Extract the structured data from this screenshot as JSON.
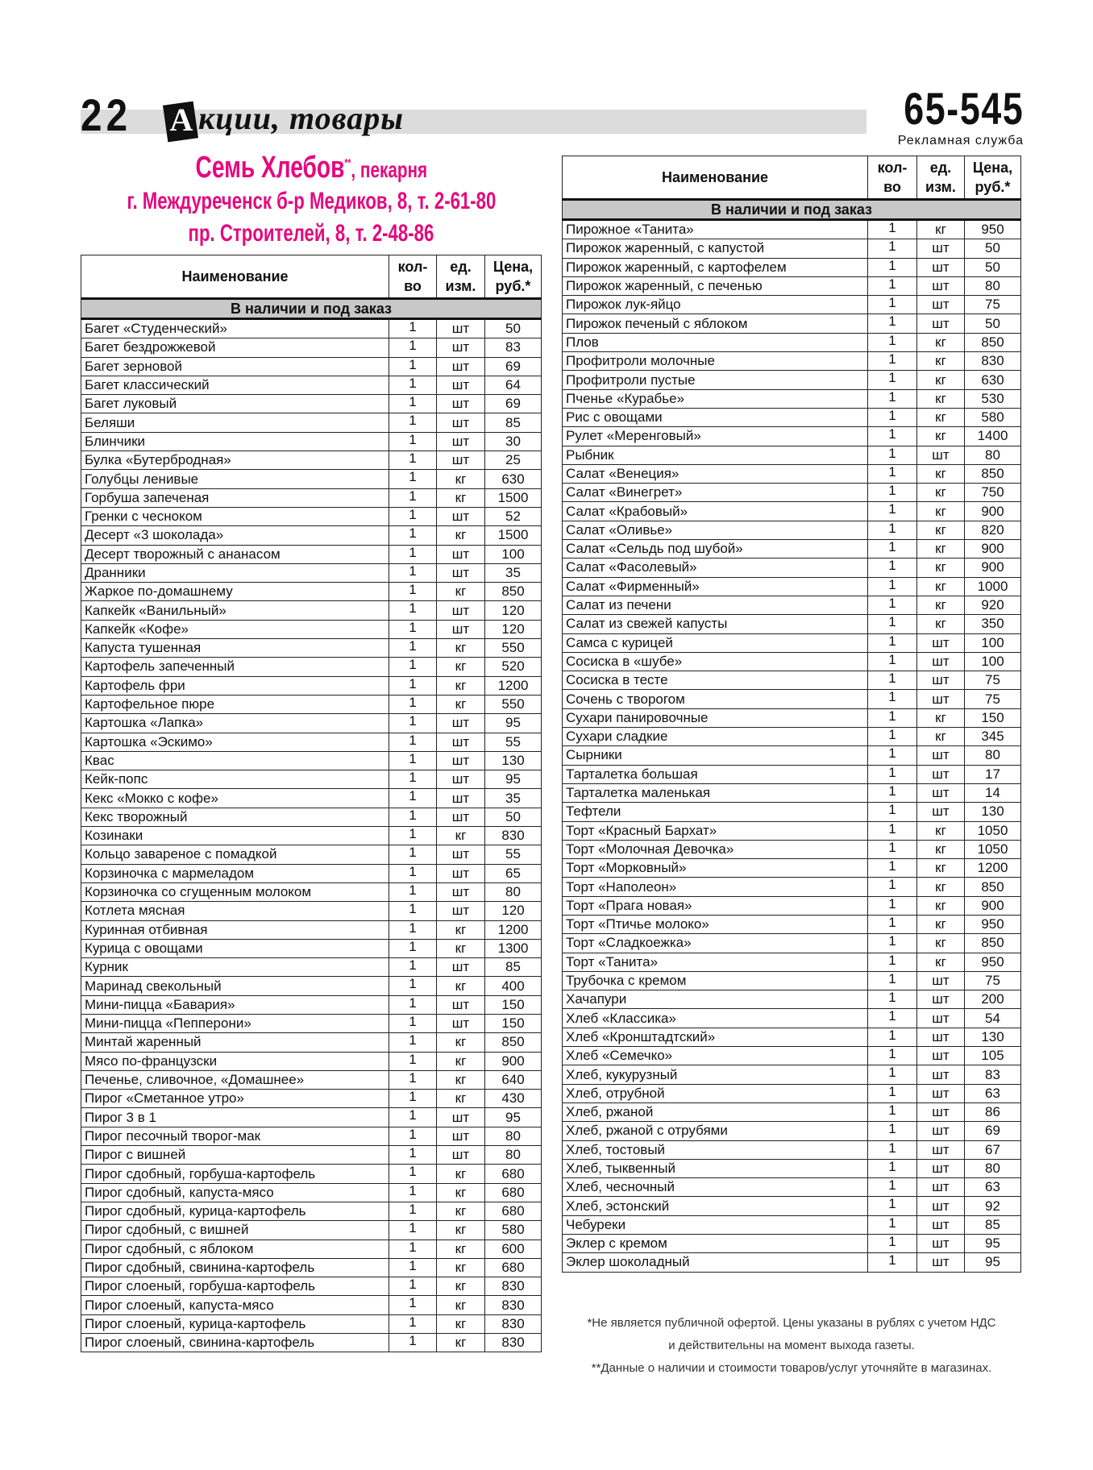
{
  "header": {
    "page_number": "22",
    "section_initial": "А",
    "section_rest": "кции, товары",
    "phone": "65-545",
    "phone_caption": "Рекламная служба"
  },
  "shop": {
    "name": "Семь Хлебов",
    "name_mark": "**",
    "type": ", пекарня",
    "address1": "г. Междуреченск б-р Медиков, 8, т. 2-61-80",
    "address2": "пр. Строителей, 8, т. 2-48-86",
    "brand_color": "#e4097f"
  },
  "table_headers": {
    "name": "Наименование",
    "qty_1": "кол-",
    "qty_2": "во",
    "unit_1": "ед.",
    "unit_2": "изм.",
    "price_1": "Цена,",
    "price_2": "руб.*",
    "section": "В наличии и под заказ"
  },
  "left_rows": [
    [
      "Багет «Студенческий»",
      "1",
      "шт",
      "50"
    ],
    [
      "Багет бездрожжевой",
      "1",
      "шт",
      "83"
    ],
    [
      "Багет зерновой",
      "1",
      "шт",
      "69"
    ],
    [
      "Багет классический",
      "1",
      "шт",
      "64"
    ],
    [
      "Багет луковый",
      "1",
      "шт",
      "69"
    ],
    [
      "Беляши",
      "1",
      "шт",
      "85"
    ],
    [
      "Блинчики",
      "1",
      "шт",
      "30"
    ],
    [
      "Булка «Бутербродная»",
      "1",
      "шт",
      "25"
    ],
    [
      "Голубцы ленивые",
      "1",
      "кг",
      "630"
    ],
    [
      "Горбуша запеченая",
      "1",
      "кг",
      "1500"
    ],
    [
      "Гренки с чесноком",
      "1",
      "шт",
      "52"
    ],
    [
      "Десерт «3 шоколада»",
      "1",
      "кг",
      "1500"
    ],
    [
      "Десерт творожный с ананасом",
      "1",
      "шт",
      "100"
    ],
    [
      "Дранники",
      "1",
      "шт",
      "35"
    ],
    [
      "Жаркое по-домашнему",
      "1",
      "кг",
      "850"
    ],
    [
      "Капкейк «Ванильный»",
      "1",
      "шт",
      "120"
    ],
    [
      "Капкейк «Кофе»",
      "1",
      "шт",
      "120"
    ],
    [
      "Капуста тушенная",
      "1",
      "кг",
      "550"
    ],
    [
      "Картофель запеченный",
      "1",
      "кг",
      "520"
    ],
    [
      "Картофель фри",
      "1",
      "кг",
      "1200"
    ],
    [
      "Картофельное пюре",
      "1",
      "кг",
      "550"
    ],
    [
      "Картошка «Лапка»",
      "1",
      "шт",
      "95"
    ],
    [
      "Картошка «Эскимо»",
      "1",
      "шт",
      "55"
    ],
    [
      "Квас",
      "1",
      "шт",
      "130"
    ],
    [
      "Кейк-попс",
      "1",
      "шт",
      "95"
    ],
    [
      "Кекс «Мокко с кофе»",
      "1",
      "шт",
      "35"
    ],
    [
      "Кекс творожный",
      "1",
      "шт",
      "50"
    ],
    [
      "Козинаки",
      "1",
      "кг",
      "830"
    ],
    [
      "Кольцо завареное с помадкой",
      "1",
      "шт",
      "55"
    ],
    [
      "Корзиночка с мармеладом",
      "1",
      "шт",
      "65"
    ],
    [
      "Корзиночка со сгущенным молоком",
      "1",
      "шт",
      "80"
    ],
    [
      "Котлета мясная",
      "1",
      "шт",
      "120"
    ],
    [
      "Куринная отбивная",
      "1",
      "кг",
      "1200"
    ],
    [
      "Курица с овощами",
      "1",
      "кг",
      "1300"
    ],
    [
      "Курник",
      "1",
      "шт",
      "85"
    ],
    [
      "Маринад свекольный",
      "1",
      "кг",
      "400"
    ],
    [
      "Мини-пицца «Бавария»",
      "1",
      "шт",
      "150"
    ],
    [
      "Мини-пицца «Пепперони»",
      "1",
      "шт",
      "150"
    ],
    [
      "Минтай жаренный",
      "1",
      "кг",
      "850"
    ],
    [
      "Мясо по-французски",
      "1",
      "кг",
      "900"
    ],
    [
      "Печенье, сливочное, «Домашнее»",
      "1",
      "кг",
      "640"
    ],
    [
      "Пирог «Сметанное утро»",
      "1",
      "кг",
      "430"
    ],
    [
      "Пирог 3 в 1",
      "1",
      "шт",
      "95"
    ],
    [
      "Пирог песочный творог-мак",
      "1",
      "шт",
      "80"
    ],
    [
      "Пирог с вишней",
      "1",
      "шт",
      "80"
    ],
    [
      "Пирог сдобный, горбуша-картофель",
      "1",
      "кг",
      "680"
    ],
    [
      "Пирог сдобный, капуста-мясо",
      "1",
      "кг",
      "680"
    ],
    [
      "Пирог сдобный, курица-картофель",
      "1",
      "кг",
      "680"
    ],
    [
      "Пирог сдобный, с вишней",
      "1",
      "кг",
      "580"
    ],
    [
      "Пирог сдобный, с яблоком",
      "1",
      "кг",
      "600"
    ],
    [
      "Пирог сдобный, свинина-картофель",
      "1",
      "кг",
      "680"
    ],
    [
      "Пирог слоеный, горбуша-картофель",
      "1",
      "кг",
      "830"
    ],
    [
      "Пирог слоеный, капуста-мясо",
      "1",
      "кг",
      "830"
    ],
    [
      "Пирог слоеный, курица-картофель",
      "1",
      "кг",
      "830"
    ],
    [
      "Пирог слоеный, свинина-картофель",
      "1",
      "кг",
      "830"
    ]
  ],
  "right_rows": [
    [
      "Пирожное «Танита»",
      "1",
      "кг",
      "950"
    ],
    [
      "Пирожок жаренный, с капустой",
      "1",
      "шт",
      "50"
    ],
    [
      "Пирожок жаренный, с картофелем",
      "1",
      "шт",
      "50"
    ],
    [
      "Пирожок жаренный, с печенью",
      "1",
      "шт",
      "80"
    ],
    [
      "Пирожок лук-яйцо",
      "1",
      "шт",
      "75"
    ],
    [
      "Пирожок печеный с яблоком",
      "1",
      "шт",
      "50"
    ],
    [
      "Плов",
      "1",
      "кг",
      "850"
    ],
    [
      "Профитроли молочные",
      "1",
      "кг",
      "830"
    ],
    [
      "Профитроли пустые",
      "1",
      "кг",
      "630"
    ],
    [
      "Пченье «Курабье»",
      "1",
      "кг",
      "530"
    ],
    [
      "Рис с овощами",
      "1",
      "кг",
      "580"
    ],
    [
      "Рулет «Меренговый»",
      "1",
      "кг",
      "1400"
    ],
    [
      "Рыбник",
      "1",
      "шт",
      "80"
    ],
    [
      "Салат «Венеция»",
      "1",
      "кг",
      "850"
    ],
    [
      "Салат «Винегрет»",
      "1",
      "кг",
      "750"
    ],
    [
      "Салат «Крабовый»",
      "1",
      "кг",
      "900"
    ],
    [
      "Салат «Оливье»",
      "1",
      "кг",
      "820"
    ],
    [
      "Салат «Сельдь под шубой»",
      "1",
      "кг",
      "900"
    ],
    [
      "Салат «Фасолевый»",
      "1",
      "кг",
      "900"
    ],
    [
      "Салат «Фирменный»",
      "1",
      "кг",
      "1000"
    ],
    [
      "Салат из печени",
      "1",
      "кг",
      "920"
    ],
    [
      "Салат из свежей капусты",
      "1",
      "кг",
      "350"
    ],
    [
      "Самса с курицей",
      "1",
      "шт",
      "100"
    ],
    [
      "Сосиска в «шубе»",
      "1",
      "шт",
      "100"
    ],
    [
      "Сосиска в тесте",
      "1",
      "шт",
      "75"
    ],
    [
      "Сочень с творогом",
      "1",
      "шт",
      "75"
    ],
    [
      "Сухари панировочные",
      "1",
      "кг",
      "150"
    ],
    [
      "Сухари сладкие",
      "1",
      "кг",
      "345"
    ],
    [
      "Сырники",
      "1",
      "шт",
      "80"
    ],
    [
      "Тарталетка большая",
      "1",
      "шт",
      "17"
    ],
    [
      "Тарталетка маленькая",
      "1",
      "шт",
      "14"
    ],
    [
      "Тефтели",
      "1",
      "шт",
      "130"
    ],
    [
      "Торт «Красный Бархат»",
      "1",
      "кг",
      "1050"
    ],
    [
      "Торт «Молочная Девочка»",
      "1",
      "кг",
      "1050"
    ],
    [
      "Торт «Морковный»",
      "1",
      "кг",
      "1200"
    ],
    [
      "Торт «Наполеон»",
      "1",
      "кг",
      "850"
    ],
    [
      "Торт «Прага новая»",
      "1",
      "кг",
      "900"
    ],
    [
      "Торт «Птичье молоко»",
      "1",
      "кг",
      "950"
    ],
    [
      "Торт «Сладкоежка»",
      "1",
      "кг",
      "850"
    ],
    [
      "Торт «Танита»",
      "1",
      "кг",
      "950"
    ],
    [
      "Трубочка с кремом",
      "1",
      "шт",
      "75"
    ],
    [
      "Хачапури",
      "1",
      "шт",
      "200"
    ],
    [
      "Хлеб «Классика»",
      "1",
      "шт",
      "54"
    ],
    [
      "Хлеб «Кронштадтский»",
      "1",
      "шт",
      "130"
    ],
    [
      "Хлеб «Семечко»",
      "1",
      "шт",
      "105"
    ],
    [
      "Хлеб, кукурузный",
      "1",
      "шт",
      "83"
    ],
    [
      "Хлеб, отрубной",
      "1",
      "шт",
      "63"
    ],
    [
      "Хлеб, ржаной",
      "1",
      "шт",
      "86"
    ],
    [
      "Хлеб, ржаной с отрубями",
      "1",
      "шт",
      "69"
    ],
    [
      "Хлеб, тостовый",
      "1",
      "шт",
      "67"
    ],
    [
      "Хлеб, тыквенный",
      "1",
      "шт",
      "80"
    ],
    [
      "Хлеб, чесночный",
      "1",
      "шт",
      "63"
    ],
    [
      "Хлеб, эстонский",
      "1",
      "шт",
      "92"
    ],
    [
      "Чебуреки",
      "1",
      "шт",
      "85"
    ],
    [
      "Эклер с кремом",
      "1",
      "шт",
      "95"
    ],
    [
      "Эклер шоколадный",
      "1",
      "шт",
      "95"
    ]
  ],
  "footnotes": {
    "line1": "*Не является публичной офертой. Цены указаны в рублях с учетом НДС",
    "line2": "и действительны на момент выхода газеты.",
    "line3": "**Данные о наличии и стоимости товаров/услуг уточняйте в магазинах."
  }
}
